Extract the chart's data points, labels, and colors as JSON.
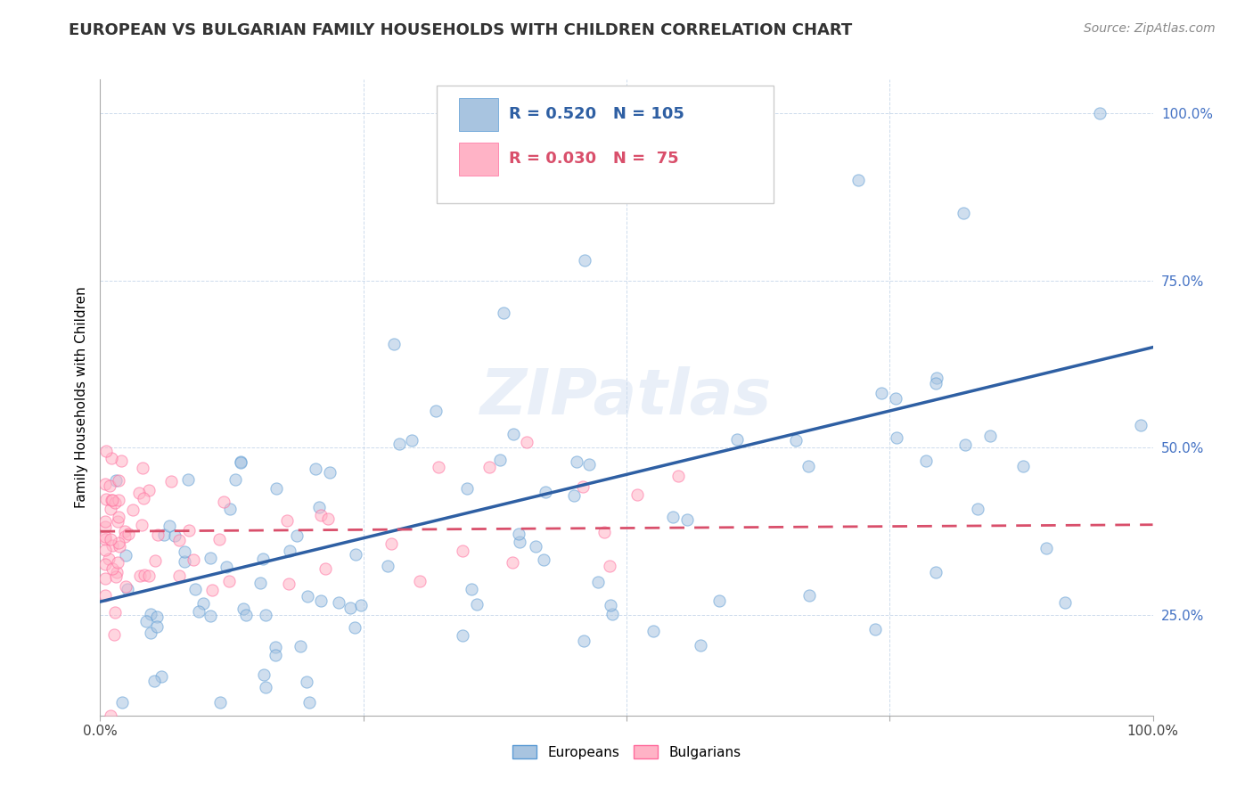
{
  "title": "EUROPEAN VS BULGARIAN FAMILY HOUSEHOLDS WITH CHILDREN CORRELATION CHART",
  "source": "Source: ZipAtlas.com",
  "ylabel": "Family Households with Children",
  "xlabel": "",
  "xlim": [
    0.0,
    1.0
  ],
  "ylim": [
    0.1,
    1.05
  ],
  "xtick_labels": [
    "0.0%",
    "",
    "",
    "",
    "100.0%"
  ],
  "xtick_positions": [
    0.0,
    0.25,
    0.5,
    0.75,
    1.0
  ],
  "ytick_labels": [
    "25.0%",
    "50.0%",
    "75.0%",
    "100.0%"
  ],
  "ytick_positions": [
    0.25,
    0.5,
    0.75,
    1.0
  ],
  "ytick_color": "#4472c4",
  "european_color": "#a8c4e0",
  "european_edge_color": "#5b9bd5",
  "bulgarian_color": "#ffb3c6",
  "bulgarian_edge_color": "#ff6b9d",
  "european_line_color": "#2e5fa3",
  "bulgarian_line_color": "#d94f6b",
  "R_european": 0.52,
  "N_european": 105,
  "R_bulgarian": 0.03,
  "N_bulgarian": 75,
  "legend_label_european": "Europeans",
  "legend_label_bulgarian": "Bulgarians",
  "watermark": "ZIPatlas",
  "title_fontsize": 13,
  "source_fontsize": 10,
  "axis_label_fontsize": 11,
  "tick_fontsize": 11,
  "legend_fontsize": 11,
  "marker_size": 90,
  "marker_alpha": 0.55,
  "eu_line_start_x": 0.0,
  "eu_line_start_y": 0.27,
  "eu_line_end_x": 1.0,
  "eu_line_end_y": 0.65,
  "bg_line_start_x": 0.0,
  "bg_line_start_y": 0.375,
  "bg_line_end_x": 1.0,
  "bg_line_end_y": 0.385
}
